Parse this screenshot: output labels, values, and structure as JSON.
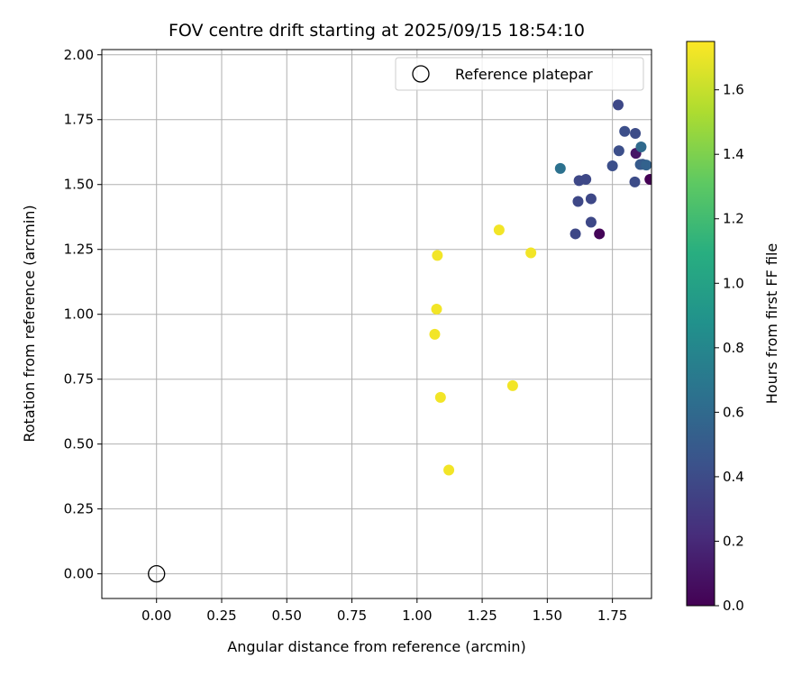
{
  "chart_data": {
    "type": "scatter",
    "title": "FOV centre drift starting at 2025/09/15 18:54:10",
    "xlabel": "Angular distance from reference (arcmin)",
    "ylabel": "Rotation from reference (arcmin)",
    "xlim": [
      -0.21,
      1.9
    ],
    "ylim": [
      -0.095,
      2.02
    ],
    "xticks": [
      "0.00",
      "0.25",
      "0.50",
      "0.75",
      "1.00",
      "1.25",
      "1.50",
      "1.75"
    ],
    "yticks": [
      "0.00",
      "0.25",
      "0.50",
      "0.75",
      "1.00",
      "1.25",
      "1.50",
      "1.75",
      "2.00"
    ],
    "grid": true,
    "legend": {
      "placement": "top-right",
      "entries": [
        {
          "label": "Reference platepar",
          "marker": "hollow-circle",
          "x": 0.0,
          "y": 0.0
        }
      ]
    },
    "colorbar": {
      "label": "Hours from first FF file",
      "colormap": "viridis",
      "min": 0.0,
      "max": 1.75,
      "ticks": [
        "0.0",
        "0.2",
        "0.4",
        "0.6",
        "0.8",
        "1.0",
        "1.2",
        "1.4",
        "1.6"
      ]
    },
    "points": [
      {
        "x": 1.894,
        "y": 1.52,
        "hours": 0.0
      },
      {
        "x": 1.7,
        "y": 1.31,
        "hours": 0.02
      },
      {
        "x": 1.84,
        "y": 1.62,
        "hours": 0.1
      },
      {
        "x": 1.608,
        "y": 1.31,
        "hours": 0.38
      },
      {
        "x": 1.668,
        "y": 1.355,
        "hours": 0.38
      },
      {
        "x": 1.618,
        "y": 1.435,
        "hours": 0.38
      },
      {
        "x": 1.668,
        "y": 1.445,
        "hours": 0.38
      },
      {
        "x": 1.622,
        "y": 1.515,
        "hours": 0.38
      },
      {
        "x": 1.648,
        "y": 1.52,
        "hours": 0.38
      },
      {
        "x": 1.836,
        "y": 1.51,
        "hours": 0.4
      },
      {
        "x": 1.75,
        "y": 1.572,
        "hours": 0.42
      },
      {
        "x": 1.866,
        "y": 1.578,
        "hours": 0.45
      },
      {
        "x": 1.775,
        "y": 1.63,
        "hours": 0.42
      },
      {
        "x": 1.838,
        "y": 1.697,
        "hours": 0.4
      },
      {
        "x": 1.797,
        "y": 1.705,
        "hours": 0.42
      },
      {
        "x": 1.772,
        "y": 1.807,
        "hours": 0.38
      },
      {
        "x": 1.857,
        "y": 1.577,
        "hours": 0.5
      },
      {
        "x": 1.86,
        "y": 1.645,
        "hours": 0.6
      },
      {
        "x": 1.88,
        "y": 1.575,
        "hours": 0.55
      },
      {
        "x": 1.55,
        "y": 1.562,
        "hours": 0.65
      },
      {
        "x": 1.315,
        "y": 1.325,
        "hours": 1.72
      },
      {
        "x": 1.437,
        "y": 1.237,
        "hours": 1.72
      },
      {
        "x": 1.078,
        "y": 1.227,
        "hours": 1.72
      },
      {
        "x": 1.075,
        "y": 1.02,
        "hours": 1.72
      },
      {
        "x": 1.068,
        "y": 0.923,
        "hours": 1.72
      },
      {
        "x": 1.367,
        "y": 0.725,
        "hours": 1.72
      },
      {
        "x": 1.09,
        "y": 0.68,
        "hours": 1.72
      },
      {
        "x": 1.122,
        "y": 0.4,
        "hours": 1.72
      }
    ]
  }
}
